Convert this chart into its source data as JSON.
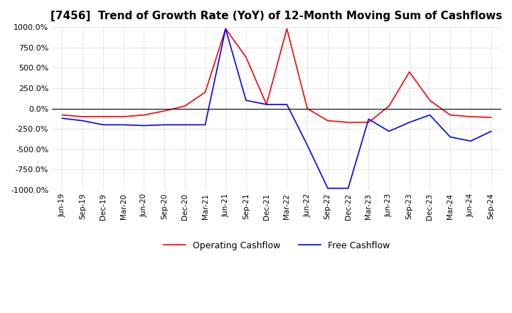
{
  "title": "[7456]  Trend of Growth Rate (YoY) of 12-Month Moving Sum of Cashflows",
  "ylim": [
    -1000,
    1000
  ],
  "yticks": [
    1000,
    750,
    500,
    250,
    0,
    -250,
    -500,
    -750,
    -1000
  ],
  "ytick_labels": [
    "1000.0%",
    "750.0%",
    "500.0%",
    "250.0%",
    "0.0%",
    "-250.0%",
    "-500.0%",
    "-750.0%",
    "-1000.0%"
  ],
  "x_labels": [
    "Jun-19",
    "Sep-19",
    "Dec-19",
    "Mar-20",
    "Jun-20",
    "Sep-20",
    "Dec-20",
    "Mar-21",
    "Jun-21",
    "Sep-21",
    "Dec-21",
    "Mar-22",
    "Jun-22",
    "Sep-22",
    "Dec-22",
    "Mar-23",
    "Jun-23",
    "Sep-23",
    "Dec-23",
    "Mar-24",
    "Jun-24",
    "Sep-24"
  ],
  "operating_cashflow": [
    -80,
    -100,
    -100,
    -100,
    -80,
    -30,
    30,
    200,
    980,
    630,
    50,
    980,
    0,
    -150,
    -170,
    -170,
    30,
    450,
    100,
    -80,
    -100,
    -110
  ],
  "free_cashflow": [
    -120,
    -150,
    -200,
    -200,
    -210,
    -200,
    -200,
    -200,
    980,
    100,
    50,
    50,
    -450,
    -980,
    -980,
    -130,
    -280,
    -170,
    -80,
    -350,
    -400,
    -280
  ],
  "op_color": "#ff0000",
  "fc_color": "#0000ff",
  "bg_color": "#ffffff",
  "grid_color": "#aaaaaa",
  "title_fontsize": 11,
  "legend_labels": [
    "Operating Cashflow",
    "Free Cashflow"
  ]
}
